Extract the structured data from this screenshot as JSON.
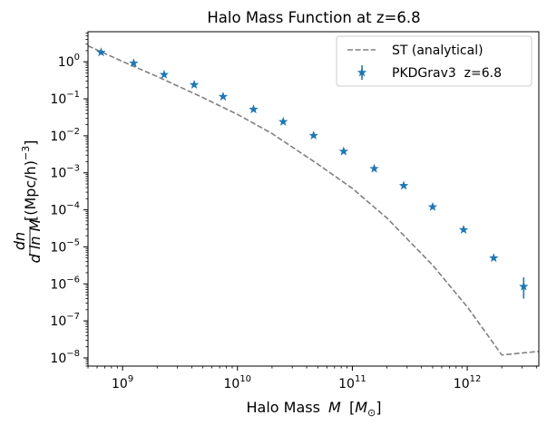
{
  "chart_data": {
    "type": "scatter",
    "title": "Halo Mass Function at z=6.8",
    "xlabel_text": "Halo Mass",
    "xlabel_var": "M",
    "xlabel_unit": "M",
    "xlabel_unit_sub": "⊙",
    "ylabel_num": "dn",
    "ylabel_den": "d ln M",
    "ylabel_unit": "[(Mpc/h)",
    "ylabel_exp": "−3",
    "xscale": "log",
    "yscale": "log",
    "xlim": [
      500000000.0,
      4200000000000.0
    ],
    "ylim": [
      6e-09,
      6.5
    ],
    "xticks": [
      {
        "value": 1000000000.0,
        "base": "10",
        "exp": "9"
      },
      {
        "value": 10000000000.0,
        "base": "10",
        "exp": "10"
      },
      {
        "value": 100000000000.0,
        "base": "10",
        "exp": "11"
      },
      {
        "value": 1000000000000.0,
        "base": "10",
        "exp": "12"
      }
    ],
    "yticks": [
      {
        "value": 1,
        "base": "10",
        "exp": "0"
      },
      {
        "value": 0.1,
        "base": "10",
        "exp": "−1"
      },
      {
        "value": 0.01,
        "base": "10",
        "exp": "−2"
      },
      {
        "value": 0.001,
        "base": "10",
        "exp": "−3"
      },
      {
        "value": 0.0001,
        "base": "10",
        "exp": "−4"
      },
      {
        "value": 1e-05,
        "base": "10",
        "exp": "−5"
      },
      {
        "value": 1e-06,
        "base": "10",
        "exp": "−6"
      },
      {
        "value": 1e-07,
        "base": "10",
        "exp": "−7"
      },
      {
        "value": 1e-08,
        "base": "10",
        "exp": "−8"
      }
    ],
    "legend_position": "upper right",
    "series": [
      {
        "name": "ST (analytical)",
        "kind": "line",
        "style": "dashed",
        "color": "#808080",
        "x": [
          500000000.0,
          1000000000.0,
          2000000000.0,
          5000000000.0,
          10000000000.0,
          20000000000.0,
          50000000000.0,
          100000000000.0,
          200000000000.0,
          500000000000.0,
          1000000000000.0,
          2000000000000.0,
          4200000000000.0
        ],
        "y": [
          2.7,
          1.02,
          0.4,
          0.108,
          0.038,
          0.0115,
          0.00172,
          0.00038,
          6e-05,
          3.2e-06,
          2.4e-07,
          1.2e-08,
          1.5e-08
        ]
      },
      {
        "name": "PKDGrav3  z=6.8",
        "kind": "errorbar",
        "marker": "star",
        "color": "#1f77b4",
        "x": [
          650000000.0,
          1250000000.0,
          2300000000.0,
          4200000000.0,
          7500000000.0,
          13800000000.0,
          25000000000.0,
          46000000000.0,
          84000000000.0,
          155000000000.0,
          280000000000.0,
          500000000000.0,
          930000000000.0,
          1700000000000.0,
          3100000000000.0
        ],
        "y": [
          1.8,
          0.92,
          0.45,
          0.24,
          0.115,
          0.052,
          0.024,
          0.0102,
          0.0038,
          0.0013,
          0.00045,
          0.00012,
          2.9e-05,
          5e-06,
          8.5e-07
        ],
        "yerr_low": [
          0,
          0,
          0,
          0,
          0,
          0,
          0,
          0,
          0,
          0,
          0,
          0,
          0,
          0,
          4.5e-07
        ],
        "yerr_high": [
          0,
          0,
          0,
          0,
          0,
          0,
          0,
          0,
          0,
          0,
          0,
          0,
          0,
          0,
          6.5e-07
        ]
      }
    ]
  }
}
